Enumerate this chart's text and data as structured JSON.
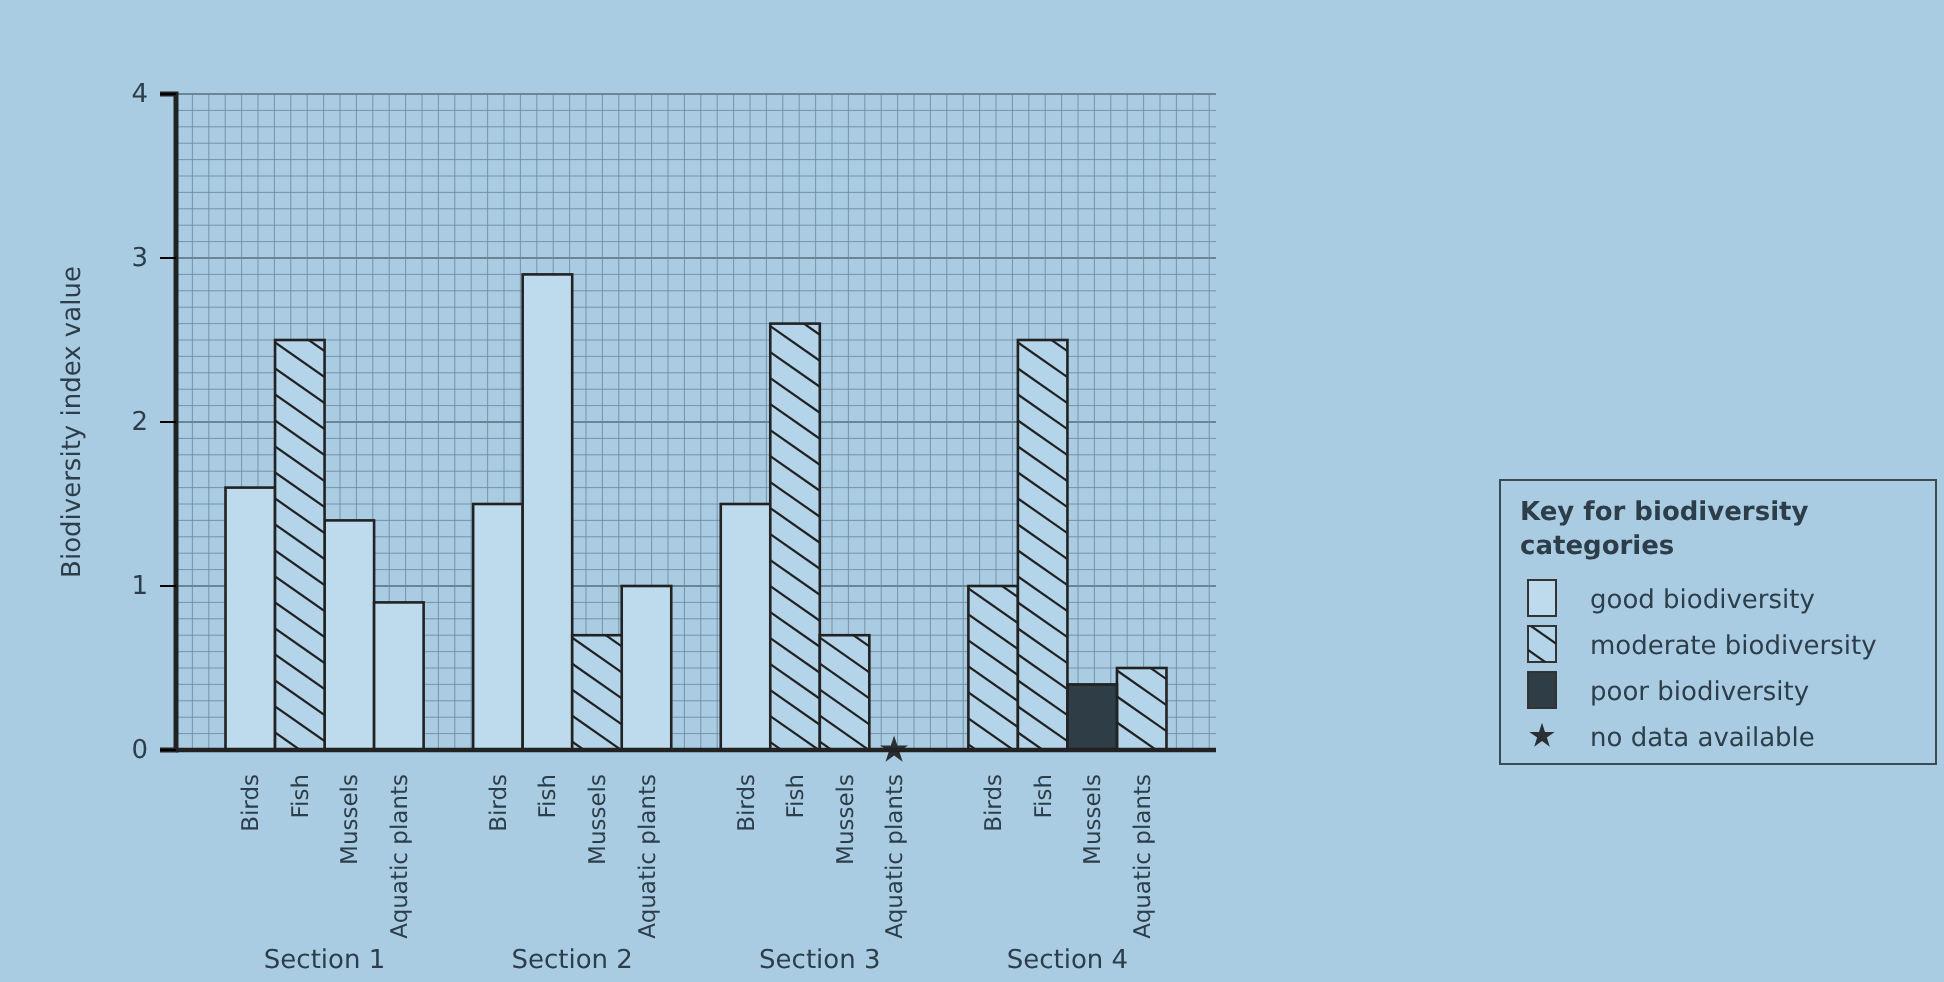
{
  "chart_data": {
    "type": "bar",
    "stacked": true,
    "ylabel": "Biodiversity index value",
    "legend_title": "Key for biodiversity categories",
    "legend": "right",
    "grid": true,
    "categories": [
      null,
      "Birds",
      "Fish",
      "Mussels",
      "Aquatic plants",
      null,
      "Birds",
      "Fish",
      "Mussels",
      "Aquatic plants",
      null,
      "Birds",
      "Fish",
      "Mussels",
      "Aquatic plants",
      null,
      "Birds",
      "Fish",
      "Mussels",
      "Aquatic plants",
      null
    ],
    "ylim": [
      0,
      4
    ],
    "yticks": [
      0,
      1,
      2,
      3,
      4
    ],
    "series": [
      {
        "name": "good biodiversity",
        "color": "#bddbec",
        "values": [
          null,
          1.6,
          null,
          1.4,
          0.9,
          null,
          1.5,
          2.9,
          null,
          1.0,
          null,
          1.5,
          null,
          null,
          null,
          null,
          null,
          null,
          null,
          null,
          null
        ]
      },
      {
        "name": "moderate biodiversity",
        "color": "#b4d5e9",
        "values": [
          null,
          null,
          2.5,
          null,
          null,
          null,
          null,
          null,
          0.7,
          null,
          null,
          null,
          2.6,
          0.7,
          null,
          null,
          1.0,
          2.5,
          null,
          0.5,
          null
        ]
      },
      {
        "name": "poor biodiversity",
        "color": "#2f3d46",
        "values": [
          null,
          null,
          null,
          null,
          null,
          null,
          null,
          null,
          null,
          null,
          null,
          null,
          null,
          null,
          null,
          null,
          null,
          null,
          0.4,
          null,
          null
        ]
      },
      {
        "name": "no data available",
        "type": "scatter",
        "marker": "star",
        "color": "#2a2f33",
        "values": [
          null,
          null,
          null,
          null,
          null,
          null,
          null,
          null,
          null,
          null,
          null,
          null,
          null,
          null,
          0,
          null,
          null,
          null,
          null,
          null,
          null
        ]
      }
    ],
    "annotations": [
      "Section 1",
      "Section 2",
      "Section 3",
      "Section 4"
    ]
  }
}
